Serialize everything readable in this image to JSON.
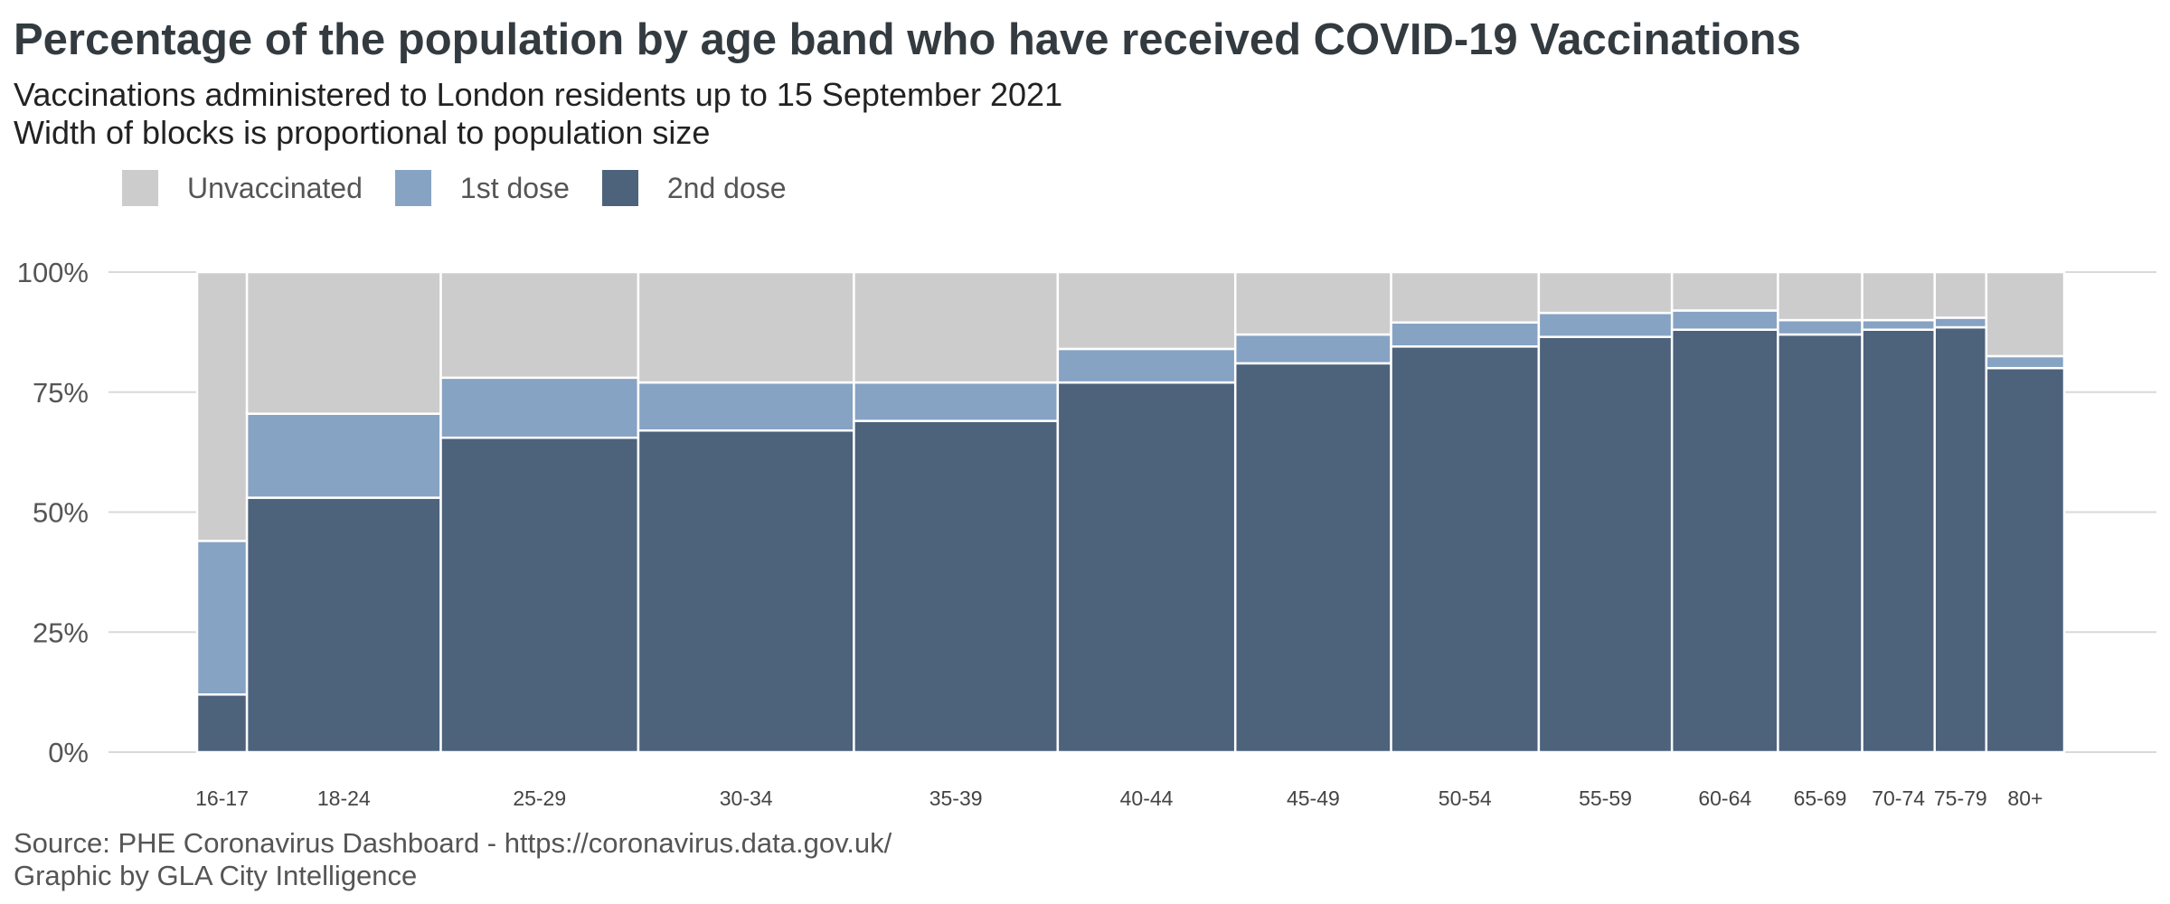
{
  "title": "Percentage of the population by age band who have received COVID-19 Vaccinations",
  "subtitle_1": "Vaccinations administered to London residents up to 15 September 2021",
  "subtitle_2": "Width of blocks is proportional to population size",
  "colors": {
    "unvaccinated": "#cccccc",
    "first_dose": "#87a3c3",
    "second_dose": "#4d627b"
  },
  "legend": {
    "unvaccinated": "Unvaccinated",
    "first_dose": "1st dose",
    "second_dose": "2nd dose"
  },
  "caption_1": "Source: PHE Coronavirus Dashboard - https://coronavirus.data.gov.uk/",
  "caption_2": "Graphic by GLA City Intelligence",
  "chart_data": {
    "type": "bar",
    "subtype": "variable-width stacked (mosaic)",
    "categories": [
      "16-17",
      "18-24",
      "25-29",
      "30-34",
      "35-39",
      "40-44",
      "45-49",
      "50-54",
      "55-59",
      "60-64",
      "65-69",
      "70-74",
      "75-79",
      "80+"
    ],
    "relative_widths": [
      55,
      214,
      218,
      238,
      225,
      196,
      172,
      163,
      147,
      117,
      93,
      80,
      57,
      86
    ],
    "series": [
      {
        "name": "2nd dose",
        "values": [
          12,
          53,
          65.5,
          67,
          69,
          77,
          81,
          84.5,
          86.5,
          88,
          87,
          88,
          88.5,
          80
        ]
      },
      {
        "name": "1st dose",
        "values": [
          32,
          17.5,
          12.5,
          10,
          8,
          7,
          6,
          5,
          5,
          4,
          3,
          2,
          2,
          2.5
        ]
      },
      {
        "name": "Unvaccinated",
        "values": [
          56,
          29.5,
          22,
          23,
          23,
          16,
          13,
          10.5,
          8.5,
          8,
          10,
          10,
          9.5,
          17.5
        ]
      }
    ],
    "yticks": [
      "0%",
      "25%",
      "50%",
      "75%",
      "100%"
    ],
    "ylim": [
      0,
      100
    ],
    "xlabel": "",
    "ylabel": "",
    "legend_position": "top-left"
  }
}
